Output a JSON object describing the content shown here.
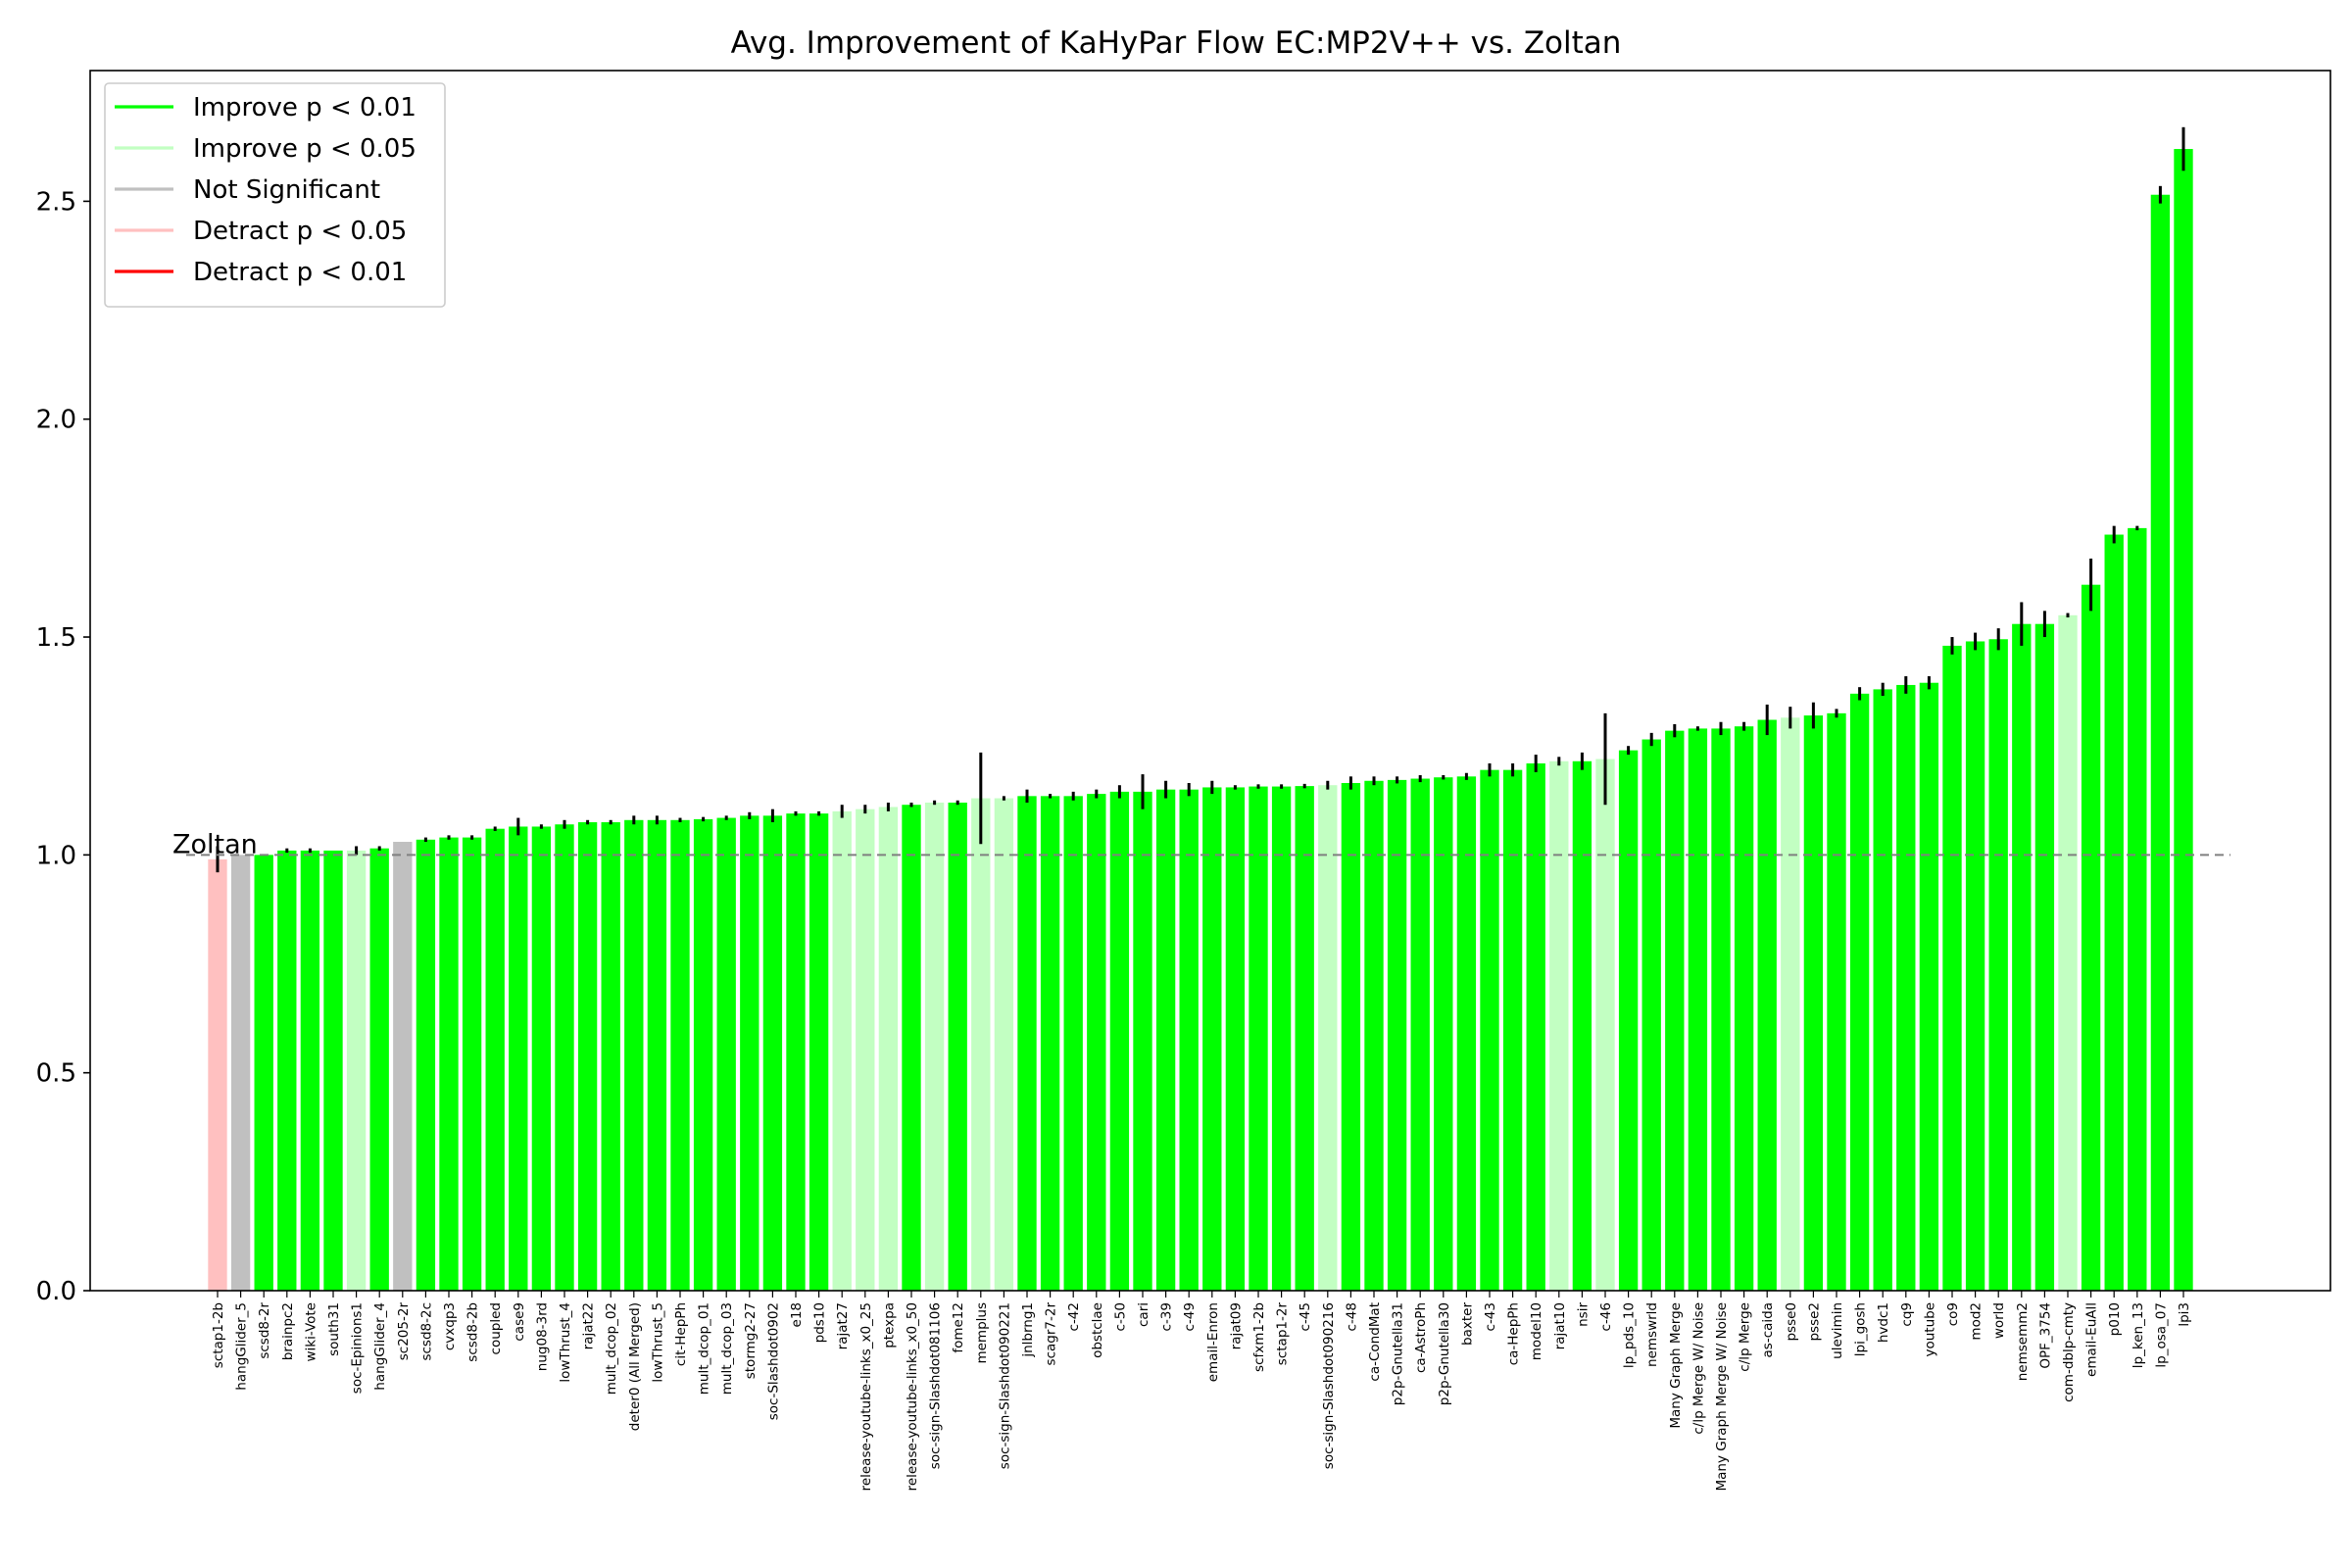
{
  "chart_data": {
    "type": "bar",
    "title": "Avg. Improvement of KaHyPar Flow EC:MP2V++ vs. Zoltan",
    "xlabel": "",
    "ylabel": "",
    "ylim": [
      0,
      2.8
    ],
    "yticks": [
      "0.0",
      "0.5",
      "1.0",
      "1.5",
      "2.0",
      "2.5"
    ],
    "baseline": {
      "value": 1.0,
      "label": "Zoltan",
      "style": "dashed"
    },
    "legend": {
      "position": "top-left",
      "entries": [
        {
          "label": "Improve p < 0.01",
          "color": "#00ff00"
        },
        {
          "label": "Improve p < 0.05",
          "color": "#c2ffc2"
        },
        {
          "label": "Not Significant",
          "color": "#c0c0c0"
        },
        {
          "label": "Detract p < 0.05",
          "color": "#ffc0c0"
        },
        {
          "label": "Detract p < 0.01",
          "color": "#ff0000"
        }
      ]
    },
    "categories": [
      "sctap1-2b",
      "hangGlider_5",
      "scsd8-2r",
      "brainpc2",
      "wiki-Vote",
      "south31",
      "soc-Epinions1",
      "hangGlider_4",
      "sc205-2r",
      "scsd8-2c",
      "cvxqp3",
      "scsd8-2b",
      "coupled",
      "case9",
      "nug08-3rd",
      "lowThrust_4",
      "rajat22",
      "mult_dcop_02",
      "deter0 (All Merged)",
      "lowThrust_5",
      "cit-HepPh",
      "mult_dcop_01",
      "mult_dcop_03",
      "stormg2-27",
      "soc-Slashdot0902",
      "e18",
      "pds10",
      "rajat27",
      "release-youtube-links_x0_25",
      "ptexpa",
      "release-youtube-links_x0_50",
      "soc-sign-Slashdot081106",
      "fome12",
      "memplus",
      "soc-sign-Slashdot090221",
      "jnlbrng1",
      "scagr7-2r",
      "c-42",
      "obstclae",
      "c-50",
      "cari",
      "c-39",
      "c-49",
      "email-Enron",
      "rajat09",
      "scfxm1-2b",
      "sctap1-2r",
      "c-45",
      "soc-sign-Slashdot090216",
      "c-48",
      "ca-CondMat",
      "p2p-Gnutella31",
      "ca-AstroPh",
      "p2p-Gnutella30",
      "baxter",
      "c-43",
      "ca-HepPh",
      "model10",
      "rajat10",
      "nsir",
      "c-46",
      "lp_pds_10",
      "nemswrld",
      "Many Graph Merge",
      "c/lp Merge W/ Noise",
      "Many Graph Merge W/ Noise",
      "c/lp Merge",
      "as-caida",
      "psse0",
      "psse2",
      "ulevimin",
      "lpi_gosh",
      "hvdc1",
      "cq9",
      "youtube",
      "co9",
      "mod2",
      "world",
      "nemsemm2",
      "OPF_3754",
      "com-dblp-cmty",
      "email-EuAll",
      "p010",
      "lp_ken_13",
      "lp_osa_07",
      "lpi3"
    ],
    "values": [
      0.99,
      1.0,
      1.0,
      1.01,
      1.01,
      1.01,
      1.01,
      1.015,
      1.03,
      1.035,
      1.04,
      1.04,
      1.06,
      1.065,
      1.065,
      1.07,
      1.075,
      1.075,
      1.08,
      1.08,
      1.08,
      1.082,
      1.085,
      1.09,
      1.09,
      1.095,
      1.095,
      1.1,
      1.105,
      1.11,
      1.115,
      1.12,
      1.12,
      1.13,
      1.13,
      1.135,
      1.135,
      1.135,
      1.14,
      1.145,
      1.145,
      1.15,
      1.15,
      1.155,
      1.155,
      1.157,
      1.157,
      1.158,
      1.16,
      1.165,
      1.17,
      1.172,
      1.175,
      1.178,
      1.18,
      1.195,
      1.195,
      1.21,
      1.215,
      1.215,
      1.22,
      1.24,
      1.265,
      1.285,
      1.29,
      1.29,
      1.295,
      1.31,
      1.315,
      1.32,
      1.325,
      1.37,
      1.38,
      1.39,
      1.395,
      1.48,
      1.49,
      1.495,
      1.53,
      1.53,
      1.55,
      1.62,
      1.735,
      1.75,
      2.515,
      2.62
    ],
    "errors": [
      0.03,
      0.0,
      0.0,
      0.005,
      0.005,
      0.0,
      0.01,
      0.005,
      0.0,
      0.005,
      0.005,
      0.005,
      0.005,
      0.02,
      0.005,
      0.01,
      0.005,
      0.005,
      0.01,
      0.01,
      0.005,
      0.005,
      0.005,
      0.008,
      0.015,
      0.005,
      0.005,
      0.015,
      0.01,
      0.01,
      0.005,
      0.005,
      0.005,
      0.105,
      0.005,
      0.015,
      0.005,
      0.01,
      0.01,
      0.015,
      0.04,
      0.02,
      0.015,
      0.015,
      0.005,
      0.005,
      0.005,
      0.005,
      0.01,
      0.015,
      0.01,
      0.008,
      0.008,
      0.005,
      0.008,
      0.015,
      0.015,
      0.02,
      0.01,
      0.02,
      0.105,
      0.01,
      0.015,
      0.015,
      0.005,
      0.015,
      0.01,
      0.035,
      0.025,
      0.03,
      0.01,
      0.015,
      0.015,
      0.02,
      0.015,
      0.02,
      0.02,
      0.025,
      0.05,
      0.03,
      0.005,
      0.06,
      0.02,
      0.005,
      0.02,
      0.05
    ],
    "significance": [
      "Detract p < 0.05",
      "Not Significant",
      "Improve p < 0.01",
      "Improve p < 0.01",
      "Improve p < 0.01",
      "Improve p < 0.01",
      "Improve p < 0.05",
      "Improve p < 0.01",
      "Not Significant",
      "Improve p < 0.01",
      "Improve p < 0.01",
      "Improve p < 0.01",
      "Improve p < 0.01",
      "Improve p < 0.01",
      "Improve p < 0.01",
      "Improve p < 0.01",
      "Improve p < 0.01",
      "Improve p < 0.01",
      "Improve p < 0.01",
      "Improve p < 0.01",
      "Improve p < 0.01",
      "Improve p < 0.01",
      "Improve p < 0.01",
      "Improve p < 0.01",
      "Improve p < 0.01",
      "Improve p < 0.01",
      "Improve p < 0.01",
      "Improve p < 0.05",
      "Improve p < 0.05",
      "Improve p < 0.05",
      "Improve p < 0.01",
      "Improve p < 0.05",
      "Improve p < 0.01",
      "Improve p < 0.05",
      "Improve p < 0.05",
      "Improve p < 0.01",
      "Improve p < 0.01",
      "Improve p < 0.01",
      "Improve p < 0.01",
      "Improve p < 0.01",
      "Improve p < 0.01",
      "Improve p < 0.01",
      "Improve p < 0.01",
      "Improve p < 0.01",
      "Improve p < 0.01",
      "Improve p < 0.01",
      "Improve p < 0.01",
      "Improve p < 0.01",
      "Improve p < 0.05",
      "Improve p < 0.01",
      "Improve p < 0.01",
      "Improve p < 0.01",
      "Improve p < 0.01",
      "Improve p < 0.01",
      "Improve p < 0.01",
      "Improve p < 0.01",
      "Improve p < 0.01",
      "Improve p < 0.01",
      "Improve p < 0.05",
      "Improve p < 0.01",
      "Improve p < 0.05",
      "Improve p < 0.01",
      "Improve p < 0.01",
      "Improve p < 0.01",
      "Improve p < 0.01",
      "Improve p < 0.01",
      "Improve p < 0.01",
      "Improve p < 0.01",
      "Improve p < 0.05",
      "Improve p < 0.01",
      "Improve p < 0.01",
      "Improve p < 0.01",
      "Improve p < 0.01",
      "Improve p < 0.01",
      "Improve p < 0.01",
      "Improve p < 0.01",
      "Improve p < 0.01",
      "Improve p < 0.01",
      "Improve p < 0.01",
      "Improve p < 0.01",
      "Improve p < 0.05",
      "Improve p < 0.01",
      "Improve p < 0.01",
      "Improve p < 0.01",
      "Improve p < 0.01",
      "Improve p < 0.01"
    ]
  }
}
